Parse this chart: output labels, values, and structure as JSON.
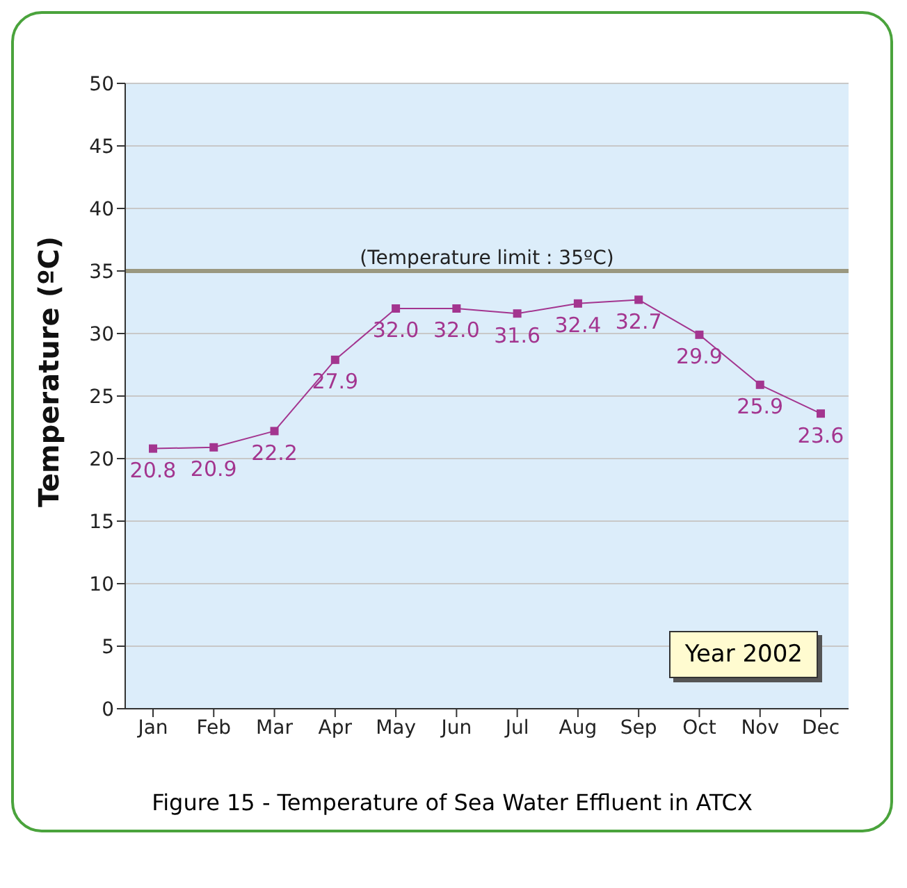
{
  "chart_data": {
    "type": "line",
    "ylabel": "Temperature (ºC)",
    "categories": [
      "Jan",
      "Feb",
      "Mar",
      "Apr",
      "May",
      "Jun",
      "Jul",
      "Aug",
      "Sep",
      "Oct",
      "Nov",
      "Dec"
    ],
    "series": [
      {
        "color": "#a3358f",
        "values": [
          20.8,
          20.9,
          22.2,
          27.9,
          32.0,
          32.0,
          31.6,
          32.4,
          32.7,
          29.9,
          25.9,
          23.6
        ],
        "value_labels": [
          "20.8",
          "20.9",
          "22.2",
          "27.9",
          "32.0",
          "32.0",
          "31.6",
          "32.4",
          "32.7",
          "29.9",
          "25.9",
          "23.6"
        ]
      }
    ],
    "ylim": [
      0,
      50
    ],
    "yticks": [
      0,
      5,
      10,
      15,
      20,
      25,
      30,
      35,
      40,
      45,
      50
    ],
    "grid": "y",
    "marker": "square",
    "line_style": "solid",
    "legend": false,
    "ref_lines": [
      {
        "axis": "y",
        "value": 35,
        "label": "(Temperature limit : 35ºC)",
        "color": "#9a9880"
      }
    ],
    "annotations": [
      "Year 2002",
      "Figure 15 - Temperature of Sea Water Effluent in ATCX"
    ]
  }
}
